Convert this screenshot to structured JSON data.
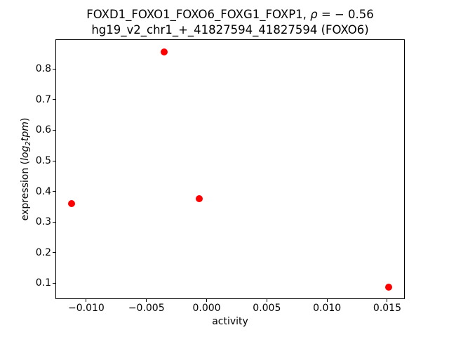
{
  "figure": {
    "background_color": "#ffffff",
    "text_color": "#000000",
    "spine_color": "#000000",
    "title": {
      "line1_prefix": "FOXD1_FOXO1_FOXO6_FOXG1_FOXP1, ",
      "line1_rho": "ρ",
      "line1_value": " = − 0.56",
      "line2": "hg19_v2_chr1_+_41827594_41827594 (FOXO6)"
    },
    "ylabel": {
      "prefix": "expression (",
      "math_log": "log",
      "math_sub": "2",
      "math_tpm": "tpm",
      "suffix": ")"
    },
    "xlabel": "activity"
  },
  "chart_data": {
    "type": "scatter",
    "title": "FOXD1_FOXO1_FOXO6_FOXG1_FOXP1, ρ = −0.56",
    "subtitle": "hg19_v2_chr1_+_41827594_41827594 (FOXO6)",
    "xlabel": "activity",
    "ylabel": "expression (log₂tpm)",
    "marker_color": "#ff0000",
    "marker_size_px": 10,
    "grid": false,
    "legend": null,
    "xlim": [
      -0.0125,
      0.0164
    ],
    "ylim": [
      0.05,
      0.895
    ],
    "x_ticks": [
      -0.01,
      -0.005,
      0.0,
      0.005,
      0.01,
      0.015
    ],
    "x_tick_labels": [
      "−0.010",
      "−0.005",
      "0.000",
      "0.005",
      "0.010",
      "0.015"
    ],
    "y_ticks": [
      0.1,
      0.2,
      0.3,
      0.4,
      0.5,
      0.6,
      0.7,
      0.8
    ],
    "y_tick_labels": [
      "0.1",
      "0.2",
      "0.3",
      "0.4",
      "0.5",
      "0.6",
      "0.7",
      "0.8"
    ],
    "points": [
      {
        "x": -0.0112,
        "y": 0.361
      },
      {
        "x": -0.0035,
        "y": 0.855
      },
      {
        "x": -0.0006,
        "y": 0.376
      },
      {
        "x": 0.0151,
        "y": 0.086
      }
    ]
  }
}
